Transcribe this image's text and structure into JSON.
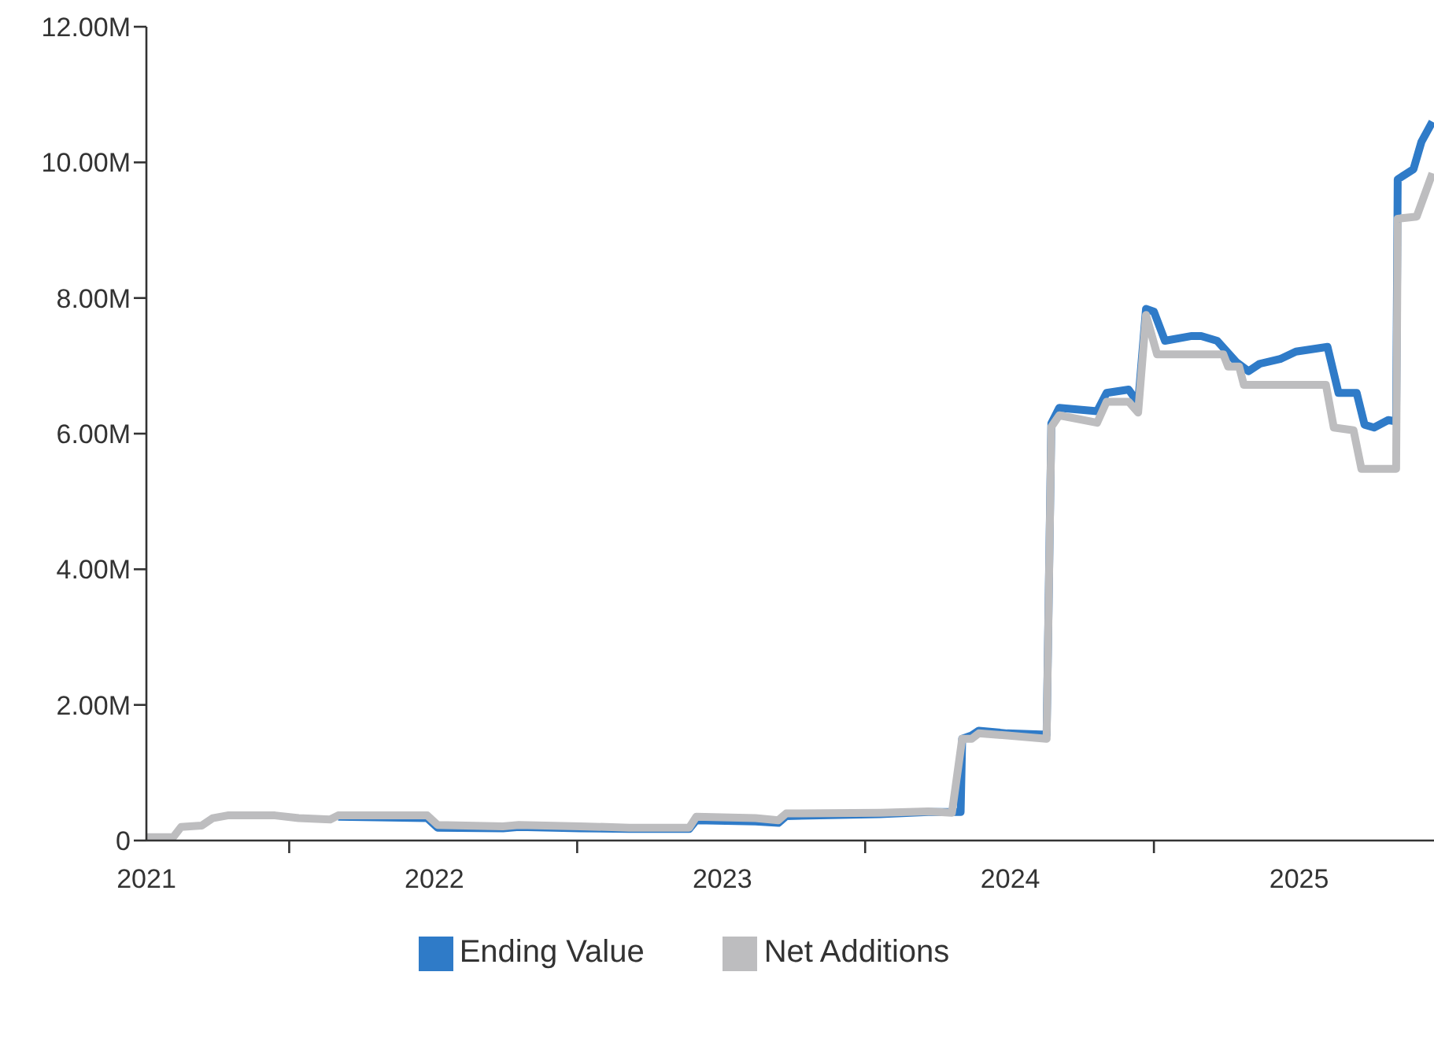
{
  "chart_data": {
    "type": "line",
    "xlim": [
      "2021-01-01",
      "2025-06-21"
    ],
    "xticks": [
      {
        "value": "2021-01-01",
        "label": "2021"
      },
      {
        "value": "2021-07-01",
        "label": null
      },
      {
        "value": "2022-01-01",
        "label": "2022"
      },
      {
        "value": "2022-07-01",
        "label": null
      },
      {
        "value": "2023-01-01",
        "label": "2023"
      },
      {
        "value": "2023-07-01",
        "label": null
      },
      {
        "value": "2024-01-01",
        "label": "2024"
      },
      {
        "value": "2024-07-01",
        "label": null
      },
      {
        "value": "2025-01-01",
        "label": "2025"
      }
    ],
    "ylim": [
      0,
      12
    ],
    "yticks": [
      0,
      {
        "value": 2,
        "label": "2.00M"
      },
      {
        "value": 4,
        "label": "4.00M"
      },
      {
        "value": 6,
        "label": "6.00M"
      },
      {
        "value": 8,
        "label": "8.00M"
      },
      {
        "value": 10,
        "label": "10.00M"
      },
      {
        "value": 12,
        "label": "12.00M"
      }
    ],
    "grid": false,
    "legend": "bottom",
    "marker": "none",
    "line_style": "solid",
    "series": [
      {
        "name": "Ending Value",
        "color": "#2f7bc8",
        "x": [
          "2021-09-01",
          "2021-12-23",
          "2022-01-05",
          "2022-03-29",
          "2022-04-18",
          "2022-07-05",
          "2022-09-05",
          "2022-11-20",
          "2022-11-29",
          "2023-02-12",
          "2023-03-13",
          "2023-03-23",
          "2023-07-20",
          "2023-09-19",
          "2023-10-30",
          "2023-11-01",
          "2023-11-13",
          "2023-11-22",
          "2023-12-28",
          "2024-02-16",
          "2024-02-22",
          "2024-03-03",
          "2024-04-20",
          "2024-05-02",
          "2024-05-30",
          "2024-06-11",
          "2024-06-21",
          "2024-07-01",
          "2024-07-15",
          "2024-08-18",
          "2024-08-30",
          "2024-09-19",
          "2024-10-13",
          "2024-10-29",
          "2024-11-12",
          "2024-12-08",
          "2024-12-28",
          "2025-02-06",
          "2025-02-20",
          "2025-03-15",
          "2025-03-25",
          "2025-04-06",
          "2025-04-24",
          "2025-05-04",
          "2025-05-06",
          "2025-05-26",
          "2025-06-05",
          "2025-06-19"
        ],
        "values": [
          0.35,
          0.33,
          0.19,
          0.18,
          0.2,
          0.18,
          0.17,
          0.17,
          0.3,
          0.28,
          0.26,
          0.36,
          0.39,
          0.42,
          0.42,
          1.5,
          1.55,
          1.62,
          1.58,
          1.56,
          6.15,
          6.38,
          6.33,
          6.6,
          6.65,
          6.45,
          7.84,
          7.8,
          7.37,
          7.44,
          7.44,
          7.37,
          7.06,
          6.92,
          7.03,
          7.1,
          7.21,
          7.28,
          6.6,
          6.6,
          6.13,
          6.09,
          6.2,
          6.18,
          9.75,
          9.9,
          10.3,
          10.6
        ]
      },
      {
        "name": "Net Additions",
        "color": "#bdbdbf",
        "x": [
          "2021-01-01",
          "2021-02-04",
          "2021-02-14",
          "2021-03-12",
          "2021-03-26",
          "2021-04-14",
          "2021-06-13",
          "2021-07-13",
          "2021-08-22",
          "2021-09-01",
          "2021-12-23",
          "2022-01-05",
          "2022-03-29",
          "2022-04-18",
          "2022-07-05",
          "2022-09-05",
          "2022-11-20",
          "2022-11-29",
          "2023-02-12",
          "2023-03-13",
          "2023-03-23",
          "2023-07-20",
          "2023-09-19",
          "2023-10-19",
          "2023-11-01",
          "2023-11-13",
          "2023-11-22",
          "2023-12-28",
          "2024-02-16",
          "2024-02-22",
          "2024-03-03",
          "2024-04-20",
          "2024-05-02",
          "2024-05-30",
          "2024-06-11",
          "2024-06-21",
          "2024-07-05",
          "2024-09-27",
          "2024-10-03",
          "2024-10-17",
          "2024-10-23",
          "2025-02-04",
          "2025-02-14",
          "2025-03-11",
          "2025-03-21",
          "2025-05-04",
          "2025-05-06",
          "2025-05-30",
          "2025-06-19"
        ],
        "values": [
          0.05,
          0.05,
          0.2,
          0.22,
          0.33,
          0.37,
          0.37,
          0.33,
          0.31,
          0.37,
          0.37,
          0.23,
          0.21,
          0.23,
          0.21,
          0.19,
          0.19,
          0.35,
          0.33,
          0.3,
          0.4,
          0.41,
          0.43,
          0.41,
          1.5,
          1.5,
          1.58,
          1.55,
          1.5,
          6.1,
          6.27,
          6.16,
          6.47,
          6.47,
          6.31,
          7.75,
          7.17,
          7.17,
          6.99,
          6.99,
          6.72,
          6.72,
          6.09,
          6.05,
          5.48,
          5.48,
          9.17,
          9.2,
          9.84
        ]
      }
    ]
  }
}
